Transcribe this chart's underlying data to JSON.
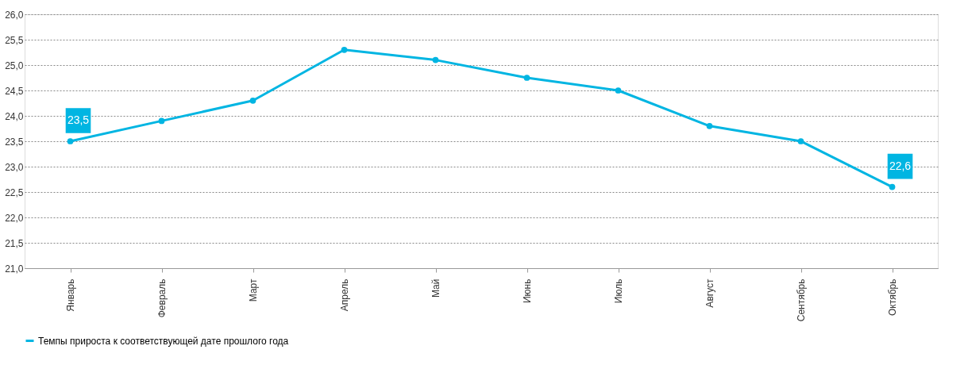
{
  "chart_data": {
    "type": "line",
    "categories": [
      "Январь",
      "Февраль",
      "Март",
      "Апрель",
      "Май",
      "Июнь",
      "Июль",
      "Август",
      "Сентябрь",
      "Октябрь"
    ],
    "series": [
      {
        "name": "Темпы прироста к соответствующей дате прошлого года",
        "color": "#00b5e2",
        "values": [
          23.5,
          23.9,
          24.3,
          25.3,
          25.1,
          24.75,
          24.5,
          23.8,
          23.5,
          22.6
        ],
        "value_labels": [
          "23,5",
          null,
          null,
          null,
          null,
          null,
          null,
          null,
          null,
          "22,6"
        ]
      }
    ],
    "ylim": [
      21.0,
      26.0
    ],
    "yticks": [
      {
        "value": 21,
        "label": "21,0"
      },
      {
        "value": 21.5,
        "label": "21,5"
      },
      {
        "value": 22,
        "label": "22,0"
      },
      {
        "value": 22.5,
        "label": "22,5"
      },
      {
        "value": 23,
        "label": "23,0"
      },
      {
        "value": 23.5,
        "label": "23,5"
      },
      {
        "value": 24,
        "label": "24,0"
      },
      {
        "value": 24.5,
        "label": "24,5"
      },
      {
        "value": 25,
        "label": "25,0"
      },
      {
        "value": 25.5,
        "label": "25,5"
      },
      {
        "value": 26,
        "label": "26,0"
      }
    ],
    "grid": "y",
    "legend": "bottom",
    "marker": "circle",
    "line_style": "solid"
  }
}
